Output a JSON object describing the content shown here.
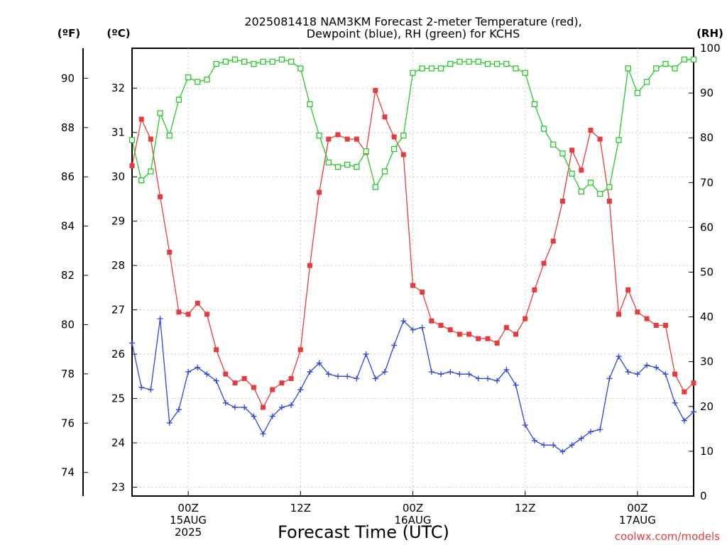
{
  "chart_data": {
    "type": "line",
    "title": "2025081418 NAM3KM Forecast 2-meter Temperature (red), Dewpoint (blue), RH (green) for KCHS",
    "title_lines": [
      "2025081418 NAM3KM Forecast 2-meter Temperature (red),",
      "Dewpoint (blue), RH (green) for KCHS"
    ],
    "xlabel": "Forecast Time (UTC)",
    "credit": "coolwx.com/models",
    "units": {
      "fahrenheit": "(ºF)",
      "celsius": "(ºC)",
      "rh": "(RH)"
    },
    "x_unit": "hours since 2025-08-14 18Z",
    "xlim": [
      0,
      60
    ],
    "x_ticks": [
      {
        "x": 6,
        "lines": [
          "00Z",
          "15AUG",
          "2025"
        ]
      },
      {
        "x": 18,
        "lines": [
          "12Z"
        ]
      },
      {
        "x": 30,
        "lines": [
          "00Z",
          "16AUG"
        ]
      },
      {
        "x": 42,
        "lines": [
          "12Z"
        ]
      },
      {
        "x": 54,
        "lines": [
          "00Z",
          "17AUG"
        ]
      }
    ],
    "y_celsius": {
      "range": [
        22.8,
        32.9
      ],
      "ticks": [
        23,
        24,
        25,
        26,
        27,
        28,
        29,
        30,
        31,
        32
      ]
    },
    "y_fahrenheit": {
      "ticks": [
        74,
        76,
        78,
        80,
        82,
        84,
        86,
        88,
        90
      ]
    },
    "y_rh": {
      "range": [
        0,
        100
      ],
      "ticks": [
        0,
        10,
        20,
        30,
        40,
        50,
        60,
        70,
        80,
        90,
        100
      ]
    },
    "grid": true,
    "colors": {
      "temperature": "#e83a3a",
      "dewpoint": "#2b45e0",
      "rh": "#22cc22"
    },
    "series": [
      {
        "name": "Temperature",
        "axis": "celsius",
        "marker": "filled-square",
        "x": [
          0,
          1,
          2,
          3,
          4,
          5,
          6,
          7,
          8,
          9,
          10,
          11,
          12,
          13,
          14,
          15,
          16,
          17,
          18,
          19,
          20,
          21,
          22,
          23,
          24,
          25,
          26,
          27,
          28,
          29,
          30,
          31,
          32,
          33,
          34,
          35,
          36,
          37,
          38,
          39,
          40,
          41,
          42,
          43,
          44,
          45,
          46,
          47,
          48,
          49,
          50,
          51,
          52,
          53,
          54,
          55,
          56,
          57,
          58,
          59,
          60
        ],
        "values": [
          30.25,
          31.3,
          30.85,
          29.55,
          28.3,
          26.95,
          26.9,
          27.15,
          26.9,
          26.1,
          25.55,
          25.35,
          25.45,
          25.25,
          24.8,
          25.2,
          25.35,
          25.45,
          26.1,
          28.0,
          29.65,
          30.85,
          30.95,
          30.85,
          30.85,
          30.55,
          31.95,
          31.35,
          30.9,
          30.5,
          27.55,
          27.4,
          26.75,
          26.65,
          26.55,
          26.45,
          26.45,
          26.35,
          26.35,
          26.25,
          26.6,
          26.45,
          26.8,
          27.45,
          28.05,
          28.55,
          29.45,
          30.6,
          30.15,
          31.05,
          30.85,
          29.45,
          26.9,
          27.45,
          26.95,
          26.8,
          26.65,
          26.65,
          25.55,
          25.15,
          25.35
        ]
      },
      {
        "name": "Dewpoint",
        "axis": "celsius",
        "marker": "plus",
        "x": [
          0,
          1,
          2,
          3,
          4,
          5,
          6,
          7,
          8,
          9,
          10,
          11,
          12,
          13,
          14,
          15,
          16,
          17,
          18,
          19,
          20,
          21,
          22,
          23,
          24,
          25,
          26,
          27,
          28,
          29,
          30,
          31,
          32,
          33,
          34,
          35,
          36,
          37,
          38,
          39,
          40,
          41,
          42,
          43,
          44,
          45,
          46,
          47,
          48,
          49,
          50,
          51,
          52,
          53,
          54,
          55,
          56,
          57,
          58,
          59,
          60
        ],
        "values": [
          26.25,
          25.25,
          25.2,
          26.8,
          24.45,
          24.75,
          25.6,
          25.7,
          25.55,
          25.4,
          24.9,
          24.8,
          24.8,
          24.6,
          24.2,
          24.6,
          24.8,
          24.85,
          25.2,
          25.6,
          25.8,
          25.55,
          25.5,
          25.5,
          25.45,
          26.0,
          25.45,
          25.6,
          26.2,
          26.75,
          26.55,
          26.6,
          25.6,
          25.55,
          25.6,
          25.55,
          25.55,
          25.45,
          25.45,
          25.4,
          25.65,
          25.3,
          24.4,
          24.05,
          23.95,
          23.95,
          23.8,
          23.95,
          24.1,
          24.25,
          24.3,
          25.45,
          25.95,
          25.6,
          25.55,
          25.75,
          25.7,
          25.55,
          24.9,
          24.5,
          24.7
        ]
      },
      {
        "name": "RH",
        "axis": "rh",
        "marker": "open-square",
        "x": [
          0,
          1,
          2,
          3,
          4,
          5,
          6,
          7,
          8,
          9,
          10,
          11,
          12,
          13,
          14,
          15,
          16,
          17,
          18,
          19,
          20,
          21,
          22,
          23,
          24,
          25,
          26,
          27,
          28,
          29,
          30,
          31,
          32,
          33,
          34,
          35,
          36,
          37,
          38,
          39,
          40,
          41,
          42,
          43,
          44,
          45,
          46,
          47,
          48,
          49,
          50,
          51,
          52,
          53,
          54,
          55,
          56,
          57,
          58,
          59,
          60
        ],
        "values": [
          79.5,
          70.5,
          72.5,
          85.5,
          80.5,
          88.5,
          93.5,
          92.5,
          93.0,
          96.5,
          97.0,
          97.5,
          97.0,
          96.5,
          97.0,
          97.0,
          97.5,
          97.0,
          95.5,
          87.5,
          80.5,
          74.5,
          73.5,
          74.0,
          73.5,
          77.0,
          69.0,
          72.5,
          77.5,
          80.5,
          94.5,
          95.5,
          95.5,
          95.5,
          96.5,
          97.0,
          97.0,
          97.0,
          96.5,
          96.5,
          96.5,
          95.5,
          94.5,
          87.5,
          82.0,
          78.5,
          76.5,
          72.0,
          68.0,
          70.0,
          67.5,
          69.0,
          79.5,
          95.5,
          90.0,
          92.5,
          95.5,
          96.5,
          95.5,
          97.5,
          97.5
        ]
      }
    ]
  }
}
